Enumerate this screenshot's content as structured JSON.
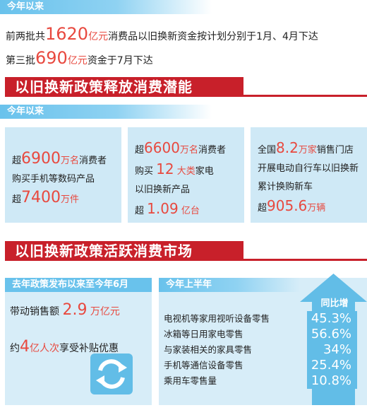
{
  "top": {
    "tag": "今年以来",
    "line1": {
      "pre": "前两批共",
      "amount": "1620",
      "unit": "亿元",
      "post": "消费品以旧换新资金按计划分别于1月、4月下达"
    },
    "line2": {
      "pre": "第三批",
      "amount": "690",
      "unit": "亿元",
      "post": "资金于7月下达"
    }
  },
  "section1": {
    "title": "以旧换新政策释放消费潜能",
    "tag": "今年以来",
    "cards": [
      {
        "a_pre": "超",
        "a_num": "6900",
        "a_unit": "万名",
        "a_post": "消费者",
        "b": "购买手机等数码产品",
        "c_pre": "超",
        "c_num": "7400",
        "c_unit": "万件"
      },
      {
        "a_pre": "超",
        "a_num": "6600",
        "a_unit": "万名",
        "a_post": "消费者",
        "b_pre": "购买",
        "b_num": "12",
        "b_unit": "大类",
        "b_post": "家电",
        "c": "以旧换新产品",
        "d_pre": "超",
        "d_num": "1.09",
        "d_unit": "亿台"
      },
      {
        "a_pre": "全国",
        "a_num": "8.2",
        "a_unit": "万家",
        "a_post": "销售门店",
        "b": "开展电动自行车以旧换新",
        "c": "累计换购新车",
        "d_pre": "超",
        "d_num": "905.6",
        "d_unit": "万辆"
      }
    ]
  },
  "section2": {
    "title": "以旧换新政策活跃消费市场",
    "left": {
      "tag": "去年政策发布以来至今年6月",
      "line1": {
        "pre": "带动销售额",
        "num": "2.9",
        "unit": "万亿元"
      },
      "line2": {
        "pre": "约",
        "num": "4",
        "unit": "亿人次",
        "post": "享受补贴优惠"
      },
      "icon": "recycle-arrows-icon"
    },
    "right": {
      "tag": "今年上半年",
      "header": "同比增",
      "rows": [
        {
          "label": "电视机等家用视听设备零售",
          "value": "45.3%"
        },
        {
          "label": "冰箱等日用家电零售",
          "value": "56.6%"
        },
        {
          "label": "与家装相关的家具零售",
          "value": "34%"
        },
        {
          "label": "手机等通信设备零售",
          "value": "25.4%"
        },
        {
          "label": "乘用车零售量",
          "value": "10.8%"
        }
      ]
    }
  },
  "colors": {
    "accent_red": "#e8493f",
    "banner_red": "#c8202a",
    "light_blue": "#cfe9f6",
    "mid_blue": "#62bde7"
  }
}
